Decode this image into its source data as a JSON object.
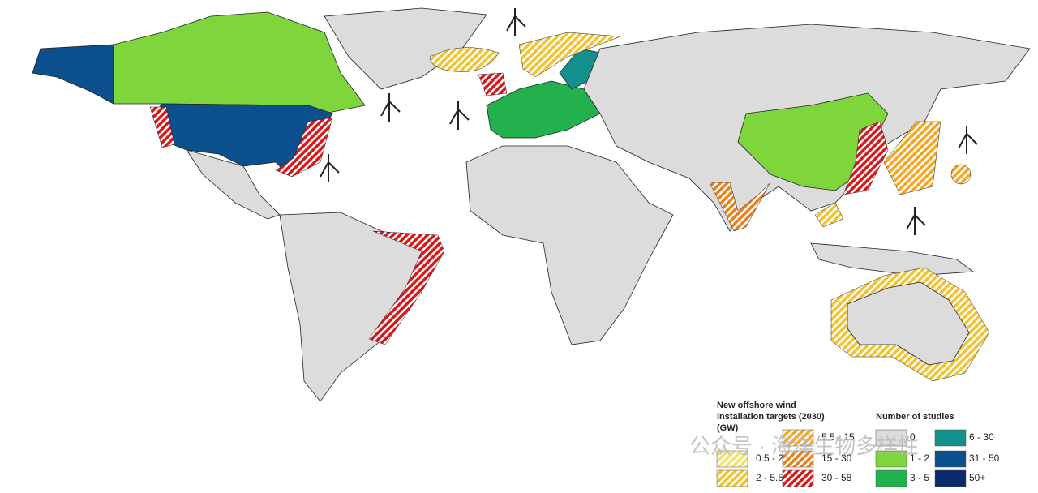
{
  "legend_targets": {
    "title_lines": [
      "New offshore wind",
      "installation targets (2030)",
      "(GW)"
    ],
    "items": [
      {
        "label": "0.5 - 2",
        "color": "#f3e36a"
      },
      {
        "label": "2 - 5.5",
        "color": "#f1c232"
      },
      {
        "label": "5.5 - 15",
        "color": "#f5a623"
      },
      {
        "label": "15 - 30",
        "color": "#e8801e"
      },
      {
        "label": "30 - 58",
        "color": "#d7191c"
      }
    ]
  },
  "legend_studies": {
    "title": "Number of studies",
    "items": [
      {
        "label": "0",
        "color": "#dcdcdc"
      },
      {
        "label": "1 - 2",
        "color": "#7ed63c"
      },
      {
        "label": "3 - 5",
        "color": "#22b14c"
      },
      {
        "label": "6 - 30",
        "color": "#12918c"
      },
      {
        "label": "31 - 50",
        "color": "#0b4f8c"
      },
      {
        "label": "50+",
        "color": "#0a2a6b"
      }
    ]
  },
  "watermark": "公众号 · 海洋生物多样性"
}
